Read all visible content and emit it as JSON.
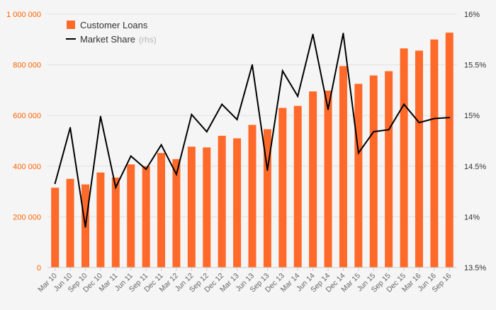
{
  "chart_data": {
    "type": "bar",
    "categories": [
      "Mar 10",
      "Jun 10",
      "Sep 10",
      "Dec 10",
      "Mar 11",
      "Jun 11",
      "Sep 11",
      "Dec 11",
      "Mar 12",
      "Jun 12",
      "Sep 12",
      "Dec 12",
      "Mar 13",
      "Jun 13",
      "Sep 13",
      "Dec 13",
      "Mar 14",
      "Jun 14",
      "Sep 14",
      "Dec 14",
      "Mar 15",
      "Jun 15",
      "Sep 15",
      "Dec 15",
      "Mar 16",
      "Jun 16",
      "Sep 16"
    ],
    "series": [
      {
        "name": "Customer Loans",
        "type": "bar",
        "axis": "left",
        "color": "#ff6a2a",
        "values": [
          315000,
          350000,
          328000,
          375000,
          355000,
          407000,
          400000,
          452000,
          428000,
          477000,
          474000,
          520000,
          510000,
          563000,
          546000,
          630000,
          638000,
          695000,
          698000,
          795000,
          725000,
          758000,
          775000,
          865000,
          856000,
          900000,
          927000
        ]
      },
      {
        "name": "Market Share",
        "note": "(rhs)",
        "type": "line",
        "axis": "right",
        "color": "#000000",
        "values": [
          14.33,
          14.88,
          13.9,
          14.99,
          14.29,
          14.6,
          14.47,
          14.71,
          14.42,
          15.01,
          14.84,
          15.11,
          14.96,
          15.5,
          14.46,
          15.44,
          15.19,
          15.8,
          15.06,
          15.81,
          14.63,
          14.84,
          14.86,
          15.11,
          14.93,
          14.97,
          14.98
        ]
      }
    ],
    "y_left": {
      "min": 0,
      "max": 1000000,
      "ticks": [
        "0",
        "200 000",
        "400 000",
        "600 000",
        "800 000",
        "1 000 000"
      ],
      "color": "#ff6200"
    },
    "y_right": {
      "min": 13.5,
      "max": 16,
      "ticks": [
        "13.5%",
        "14%",
        "14.5%",
        "15%",
        "15.5%",
        "16%"
      ]
    },
    "legend_position": "top-left",
    "grid": true,
    "title": "",
    "xlabel": "",
    "ylabel": ""
  }
}
